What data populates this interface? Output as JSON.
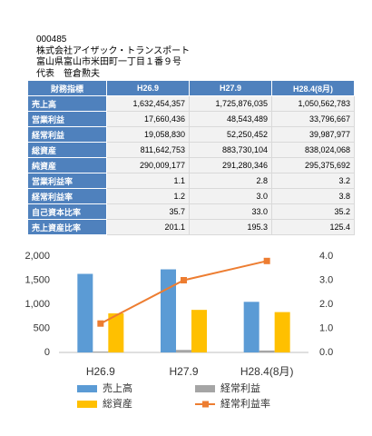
{
  "header": {
    "lines": [
      "000485",
      "株式会社アイザック・トランスポート",
      "富山県富山市米田町一丁目１番９号",
      "代表　笹倉勲夫"
    ]
  },
  "table": {
    "columns": [
      "財務指標",
      "H26.9",
      "H27.9",
      "H28.4(8月)"
    ],
    "rows": [
      [
        "売上高",
        "1,632,454,357",
        "1,725,876,035",
        "1,050,562,783"
      ],
      [
        "営業利益",
        "17,660,436",
        "48,543,489",
        "33,796,667"
      ],
      [
        "経常利益",
        "19,058,830",
        "52,250,452",
        "39,987,977"
      ],
      [
        "総資産",
        "811,642,753",
        "883,730,104",
        "838,024,068"
      ],
      [
        "純資産",
        "290,009,177",
        "291,280,346",
        "295,375,692"
      ],
      [
        "営業利益率",
        "1.1",
        "2.8",
        "3.2"
      ],
      [
        "経常利益率",
        "1.2",
        "3.0",
        "3.8"
      ],
      [
        "自己資本比率",
        "35.7",
        "33.0",
        "35.2"
      ],
      [
        "売上資産比率",
        "201.1",
        "195.3",
        "125.4"
      ]
    ]
  },
  "chart_data": {
    "type": "bar",
    "categories": [
      "H26.9",
      "H27.9",
      "H28.4(8月)"
    ],
    "series": [
      {
        "name": "売上高",
        "color": "#5b9bd5",
        "values": [
          1632,
          1726,
          1051
        ]
      },
      {
        "name": "経常利益",
        "color": "#a5a5a5",
        "values": [
          19,
          52,
          40
        ]
      },
      {
        "name": "総資産",
        "color": "#ffc000",
        "values": [
          812,
          884,
          838
        ]
      },
      {
        "name": "経常利益率",
        "color": "#ed7d31",
        "values": [
          1.2,
          3.0,
          3.8
        ],
        "axis": "y2",
        "type": "line"
      }
    ],
    "ylim": [
      0,
      2000
    ],
    "yticks": [
      0,
      500,
      {
        "value": 1000,
        "label": "1,000"
      },
      {
        "value": 1500,
        "label": "1,500"
      },
      {
        "value": 2000,
        "label": "2,000"
      }
    ],
    "y2lim": [
      0,
      4
    ],
    "y2ticks": [
      {
        "value": 0,
        "label": "0.0"
      },
      {
        "value": 1,
        "label": "1.0"
      },
      {
        "value": 2,
        "label": "2.0"
      },
      {
        "value": 3,
        "label": "3.0"
      },
      {
        "value": 4,
        "label": "4.0"
      }
    ]
  }
}
